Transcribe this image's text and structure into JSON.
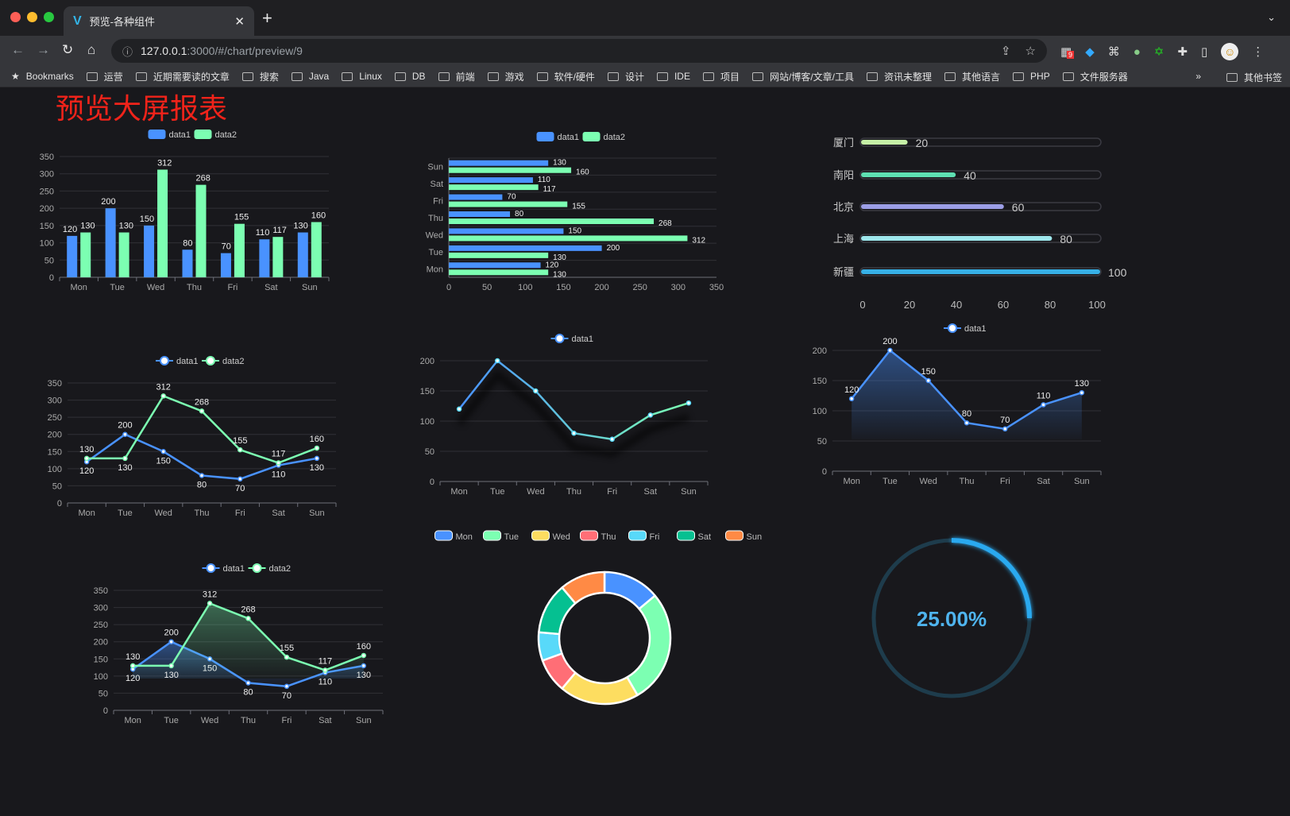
{
  "browser": {
    "tab_title": "预览-各种组件",
    "url_host": "127.0.0.1",
    "url_rest": ":3000/#/chart/preview/9",
    "extension_badge": "9",
    "bookmarks": [
      "Bookmarks",
      "运营",
      "近期需要读的文章",
      "搜索",
      "Java",
      "Linux",
      "DB",
      "前端",
      "游戏",
      "软件/硬件",
      "设计",
      "IDE",
      "项目",
      "网站/博客/文章/工具",
      "资讯未整理",
      "其他语言",
      "PHP",
      "文件服务器"
    ],
    "bookmarks_more": "»",
    "other_bookmarks": "其他书签"
  },
  "page": {
    "title": "预览大屏报表",
    "title_color": "#f0231a",
    "background": "#18181c"
  },
  "colors": {
    "data1": "#4992ff",
    "data2": "#7cffb2"
  },
  "chart_data": [
    {
      "id": "bar",
      "type": "bar",
      "categories": [
        "Mon",
        "Tue",
        "Wed",
        "Thu",
        "Fri",
        "Sat",
        "Sun"
      ],
      "series": [
        {
          "name": "data1",
          "values": [
            120,
            200,
            150,
            80,
            70,
            110,
            130
          ]
        },
        {
          "name": "data2",
          "values": [
            130,
            130,
            312,
            268,
            155,
            117,
            160
          ]
        }
      ],
      "ylim": [
        0,
        350
      ],
      "ystep": 50,
      "legend": "top-center",
      "grid": true
    },
    {
      "id": "hbar",
      "type": "bar",
      "orientation": "horizontal",
      "categories": [
        "Mon",
        "Tue",
        "Wed",
        "Thu",
        "Fri",
        "Sat",
        "Sun"
      ],
      "series": [
        {
          "name": "data1",
          "values": [
            120,
            200,
            150,
            80,
            70,
            110,
            130
          ]
        },
        {
          "name": "data2",
          "values": [
            130,
            130,
            312,
            268,
            155,
            117,
            160
          ]
        }
      ],
      "xlim": [
        0,
        350
      ],
      "xstep": 50,
      "legend": "top-center",
      "grid": true
    },
    {
      "id": "progress",
      "type": "bar",
      "orientation": "horizontal",
      "categories": [
        "厦门",
        "南阳",
        "北京",
        "上海",
        "新疆"
      ],
      "values": [
        20,
        40,
        60,
        80,
        100
      ],
      "colors": [
        "#c5efa6",
        "#5ee0b2",
        "#9c9ee6",
        "#9ee7ec",
        "#37b0e6"
      ],
      "xlim": [
        0,
        100
      ],
      "xticks": [
        0,
        20,
        40,
        60,
        80,
        100
      ]
    },
    {
      "id": "line2",
      "type": "line",
      "categories": [
        "Mon",
        "Tue",
        "Wed",
        "Thu",
        "Fri",
        "Sat",
        "Sun"
      ],
      "series": [
        {
          "name": "data1",
          "values": [
            120,
            200,
            150,
            80,
            70,
            110,
            130
          ]
        },
        {
          "name": "data2",
          "values": [
            130,
            130,
            312,
            268,
            155,
            117,
            160
          ]
        }
      ],
      "ylim": [
        0,
        350
      ],
      "ystep": 50,
      "legend": "top-center",
      "grid": true
    },
    {
      "id": "line1",
      "type": "line",
      "categories": [
        "Mon",
        "Tue",
        "Wed",
        "Thu",
        "Fri",
        "Sat",
        "Sun"
      ],
      "series": [
        {
          "name": "data1",
          "values": [
            120,
            200,
            150,
            80,
            70,
            110,
            130
          ]
        }
      ],
      "ylim": [
        0,
        200
      ],
      "ystep": 50,
      "legend": "top-center",
      "grid": true
    },
    {
      "id": "area1",
      "type": "area",
      "categories": [
        "Mon",
        "Tue",
        "Wed",
        "Thu",
        "Fri",
        "Sat",
        "Sun"
      ],
      "series": [
        {
          "name": "data1",
          "values": [
            120,
            200,
            150,
            80,
            70,
            110,
            130
          ]
        }
      ],
      "ylim": [
        0,
        200
      ],
      "ystep": 50,
      "legend": "top-center",
      "grid": true
    },
    {
      "id": "area2",
      "type": "area",
      "categories": [
        "Mon",
        "Tue",
        "Wed",
        "Thu",
        "Fri",
        "Sat",
        "Sun"
      ],
      "series": [
        {
          "name": "data1",
          "values": [
            120,
            200,
            150,
            80,
            70,
            110,
            130
          ]
        },
        {
          "name": "data2",
          "values": [
            130,
            130,
            312,
            268,
            155,
            117,
            160
          ]
        }
      ],
      "ylim": [
        0,
        350
      ],
      "ystep": 50,
      "legend": "top-center",
      "grid": true
    },
    {
      "id": "donut",
      "type": "pie",
      "categories": [
        "Mon",
        "Tue",
        "Wed",
        "Thu",
        "Fri",
        "Sat",
        "Sun"
      ],
      "values": [
        50,
        100,
        70,
        30,
        25,
        45,
        40
      ],
      "colors": [
        "#4992ff",
        "#7cffb2",
        "#fddd60",
        "#ff6e76",
        "#58d9f9",
        "#05c091",
        "#ff8a45"
      ],
      "legend": "top-center"
    },
    {
      "id": "gauge",
      "type": "gauge",
      "value": 25,
      "label": "25.00%",
      "color": "#29a9ef"
    }
  ]
}
